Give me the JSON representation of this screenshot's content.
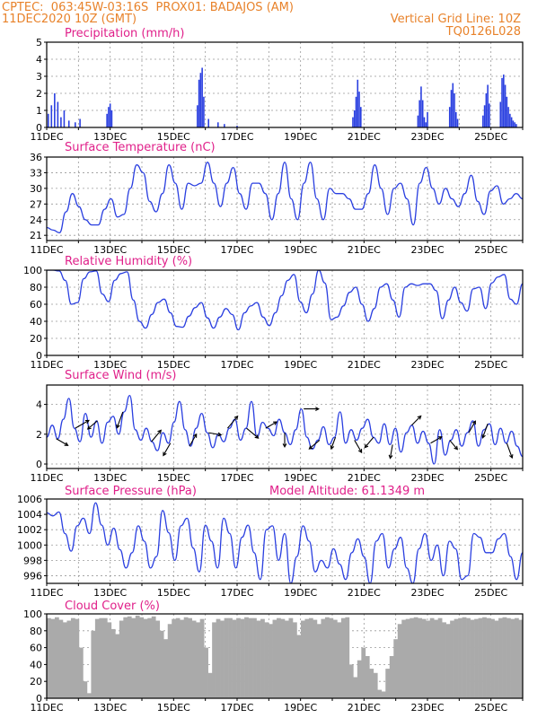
{
  "header": {
    "left_line1": "CPTEC:  063:45W-03:16S  PROX01: BADAJOS (AM)",
    "left_line2": "11DEC2020 10Z (GMT)",
    "right_line1": "Vertical Grid Line: 10Z",
    "right_line2": "TQ0126L028",
    "color": "#e8822a"
  },
  "colors": {
    "title": "#e0208a",
    "series": "#2a3fe0",
    "arrow": "#000000",
    "cloud": "#aaaaaa"
  },
  "chart_data": [
    {
      "id": "precip",
      "type": "bar",
      "title": "Precipitation (mm/h)",
      "xticks": [
        "11DEC",
        "13DEC",
        "15DEC",
        "17DEC",
        "19DEC",
        "21DEC",
        "23DEC",
        "25DEC"
      ],
      "xlim_days": [
        11,
        26
      ],
      "ylim": [
        0,
        5
      ],
      "yticks": [
        0,
        1,
        2,
        3,
        4,
        5
      ],
      "x_day": [
        11.05,
        11.15,
        11.25,
        11.35,
        11.45,
        11.55,
        11.7,
        11.9,
        12.05,
        12.9,
        12.95,
        13.0,
        13.05,
        15.75,
        15.8,
        15.85,
        15.9,
        15.95,
        16.1,
        16.4,
        16.6,
        17.0,
        20.65,
        20.7,
        20.75,
        20.8,
        20.85,
        20.9,
        22.7,
        22.75,
        22.8,
        22.85,
        22.9,
        22.95,
        23.0,
        23.7,
        23.75,
        23.8,
        23.85,
        23.9,
        23.95,
        24.75,
        24.8,
        24.85,
        24.9,
        24.95,
        25.3,
        25.35,
        25.4,
        25.45,
        25.5,
        25.55,
        25.6,
        25.65,
        25.7,
        25.75,
        25.8,
        26.0,
        26.05,
        26.1,
        26.15,
        26.25,
        26.3,
        26.35,
        26.4,
        26.45
      ],
      "values": [
        0.8,
        1.3,
        2.0,
        1.5,
        0.6,
        1.0,
        0.4,
        0.3,
        0.5,
        0.8,
        1.2,
        1.4,
        1.0,
        1.3,
        2.8,
        3.2,
        3.5,
        1.8,
        0.5,
        0.3,
        0.2,
        0.1,
        0.6,
        1.0,
        1.8,
        2.8,
        2.1,
        1.2,
        0.7,
        1.6,
        2.4,
        1.6,
        0.6,
        0.3,
        0.9,
        1.2,
        2.2,
        2.6,
        2.0,
        0.9,
        0.5,
        0.7,
        1.3,
        2.0,
        2.5,
        1.4,
        1.5,
        2.9,
        3.1,
        2.5,
        1.8,
        1.2,
        0.8,
        0.6,
        0.4,
        0.3,
        0.2,
        0.6,
        1.5,
        1.9,
        1.3,
        0.8,
        1.4,
        1.8,
        1.2,
        0.6
      ]
    },
    {
      "id": "temp",
      "type": "line",
      "title": "Surface Temperature (nC)",
      "xticks": [
        "11DEC",
        "13DEC",
        "15DEC",
        "17DEC",
        "19DEC",
        "21DEC",
        "23DEC",
        "25DEC"
      ],
      "xlim_days": [
        11,
        26
      ],
      "ylim": [
        20,
        36
      ],
      "yticks": [
        21,
        24,
        27,
        30,
        33,
        36
      ],
      "series": [
        {
          "values": [
            22.5,
            22.0,
            21.5,
            25.5,
            29.0,
            26.5,
            24.0,
            23.0,
            23.0,
            26.0,
            28.0,
            24.5,
            25.0,
            30.0,
            34.5,
            33.0,
            27.5,
            25.5,
            29.0,
            34.5,
            31.0,
            26.0,
            31.0,
            30.5,
            31.0,
            35.0,
            31.0,
            26.5,
            31.0,
            34.0,
            29.0,
            26.0,
            31.0,
            31.0,
            29.0,
            24.0,
            29.0,
            35.0,
            28.0,
            24.0,
            31.0,
            35.0,
            28.0,
            24.0,
            30.0,
            29.0,
            29.0,
            28.0,
            26.0,
            26.0,
            29.0,
            34.5,
            30.0,
            25.0,
            30.0,
            31.0,
            28.0,
            23.0,
            31.0,
            34.0,
            30.0,
            27.0,
            30.0,
            28.0,
            26.5,
            29.0,
            32.5,
            27.5,
            25.0,
            29.5,
            30.5,
            27.0,
            28.0,
            29.0,
            28.0
          ]
        }
      ]
    },
    {
      "id": "rh",
      "type": "line",
      "title": "Relative Humidity (%)",
      "xticks": [
        "11DEC",
        "13DEC",
        "15DEC",
        "17DEC",
        "19DEC",
        "21DEC",
        "23DEC",
        "25DEC"
      ],
      "xlim_days": [
        11,
        26
      ],
      "ylim": [
        0,
        100
      ],
      "yticks": [
        0,
        20,
        40,
        60,
        80,
        100
      ],
      "series": [
        {
          "values": [
            100,
            100,
            99,
            88,
            60,
            62,
            90,
            98,
            99,
            72,
            63,
            88,
            96,
            98,
            65,
            40,
            32,
            48,
            62,
            66,
            50,
            34,
            33,
            46,
            56,
            62,
            44,
            32,
            45,
            55,
            48,
            30,
            50,
            58,
            62,
            45,
            35,
            50,
            70,
            88,
            95,
            63,
            50,
            72,
            100,
            85,
            42,
            45,
            58,
            74,
            80,
            60,
            40,
            55,
            80,
            84,
            65,
            45,
            80,
            84,
            82,
            84,
            84,
            76,
            43,
            65,
            80,
            62,
            52,
            78,
            80,
            55,
            85,
            92,
            95,
            66,
            60,
            84
          ]
        }
      ]
    },
    {
      "id": "wind",
      "type": "line",
      "title": "Surface Wind (m/s)",
      "xticks": [
        "11DEC",
        "13DEC",
        "15DEC",
        "17DEC",
        "19DEC",
        "21DEC",
        "23DEC",
        "25DEC"
      ],
      "xlim_days": [
        11,
        26
      ],
      "ylim": [
        -0.3,
        5.3
      ],
      "yticks": [
        0,
        2,
        4
      ],
      "series": [
        {
          "values": [
            1.8,
            2.6,
            1.7,
            3.0,
            4.4,
            2.4,
            1.5,
            3.4,
            1.8,
            2.9,
            1.4,
            2.8,
            3.2,
            2.0,
            3.5,
            4.6,
            2.3,
            1.6,
            2.4,
            1.5,
            0.9,
            2.1,
            1.4,
            2.8,
            4.2,
            2.3,
            1.2,
            2.4,
            3.4,
            2.1,
            1.1,
            2.0,
            1.5,
            2.4,
            3.0,
            1.6,
            2.4,
            4.2,
            1.8,
            2.8,
            2.4,
            1.9,
            3.0,
            2.1,
            1.3,
            2.3,
            3.7,
            1.8,
            1.0,
            1.6,
            2.5,
            1.3,
            1.8,
            3.5,
            1.4,
            2.3,
            1.6,
            2.4,
            3.0,
            1.8,
            1.4,
            2.7,
            1.3,
            2.4,
            0.8,
            2.1,
            2.6,
            1.4,
            2.2,
            1.4,
            0.0,
            2.3,
            0.6,
            1.6,
            2.3,
            1.2,
            2.1,
            2.9,
            1.2,
            2.3,
            2.7,
            1.3,
            2.4,
            1.4,
            2.2,
            1.2,
            0.5
          ]
        }
      ],
      "vectors_x_day": [
        11.3,
        11.9,
        12.6,
        13.4,
        14.3,
        14.9,
        15.5,
        16.1,
        16.7,
        17.3,
        17.9,
        18.5,
        19.1,
        19.6,
        20.1,
        20.7,
        21.3,
        21.9,
        22.5,
        23.1,
        23.7,
        24.3,
        24.9,
        25.5
      ],
      "vectors_dir_deg": [
        120,
        60,
        230,
        200,
        40,
        210,
        30,
        100,
        40,
        130,
        60,
        180,
        90,
        230,
        200,
        150,
        220,
        190,
        45,
        60,
        140,
        30,
        200,
        160
      ],
      "vectors_speed": [
        2.0,
        2.6,
        1.8,
        3.0,
        2.4,
        2.2,
        2.1,
        1.8,
        2.6,
        2.5,
        1.8,
        2.2,
        2.4,
        2.0,
        1.7,
        2.2,
        2.0,
        2.1,
        1.9,
        1.8,
        1.6,
        2.0,
        2.4,
        2.6
      ]
    },
    {
      "id": "pres",
      "type": "line",
      "title": "Surface Pressure (hPa)",
      "annotation": "Model Altitude: 61.1349 m",
      "xticks": [
        "11DEC",
        "13DEC",
        "15DEC",
        "17DEC",
        "19DEC",
        "21DEC",
        "23DEC",
        "25DEC"
      ],
      "xlim_days": [
        11,
        26
      ],
      "ylim": [
        995,
        1006
      ],
      "yticks": [
        996,
        998,
        1000,
        1002,
        1004,
        1006
      ],
      "series": [
        {
          "values": [
            1004.2,
            1003.8,
            1004.3,
            1001.5,
            999.2,
            1002.5,
            1003.5,
            1001.5,
            1005.5,
            1002.6,
            1000.0,
            1002.2,
            999.4,
            997.0,
            999.0,
            1002.5,
            1000.5,
            997.0,
            998.5,
            1004.5,
            1001.6,
            998.0,
            1002.5,
            1003.5,
            999.6,
            996.5,
            1002.6,
            1000.5,
            997.0,
            1003.5,
            1001.5,
            997.0,
            1001.0,
            1002.6,
            999.0,
            995.5,
            1002.0,
            1002.5,
            998.0,
            1001.5,
            995.0,
            998.5,
            1002.5,
            1000.5,
            996.5,
            998.0,
            997.0,
            999.5,
            997.5,
            995.5,
            999.0,
            1000.8,
            998.5,
            995.0,
            1000.5,
            1001.5,
            997.0,
            999.5,
            1001.0,
            997.0,
            995.0,
            999.5,
            1001.5,
            998.0,
            1000.0,
            996.0,
            1000.5,
            999.5,
            995.5,
            996.0,
            1001.5,
            1001.0,
            999.0,
            999.0,
            1000.8,
            1001.5,
            998.5,
            995.5,
            999.0
          ]
        }
      ]
    },
    {
      "id": "cloud",
      "type": "area",
      "title": "Cloud Cover (%)",
      "xticks": [
        "11DEC",
        "13DEC",
        "15DEC",
        "17DEC",
        "19DEC",
        "21DEC",
        "23DEC",
        "25DEC"
      ],
      "xlim_days": [
        11,
        26
      ],
      "ylim": [
        0,
        100
      ],
      "yticks": [
        0,
        20,
        40,
        60,
        80,
        100
      ],
      "series": [
        {
          "values": [
            95,
            94,
            96,
            93,
            90,
            92,
            95,
            94,
            60,
            20,
            6,
            80,
            94,
            95,
            95,
            90,
            82,
            76,
            92,
            96,
            97,
            95,
            98,
            96,
            94,
            95,
            97,
            92,
            80,
            70,
            88,
            94,
            95,
            93,
            96,
            95,
            92,
            90,
            94,
            60,
            30,
            90,
            94,
            92,
            95,
            95,
            93,
            95,
            94,
            96,
            95,
            95,
            92,
            94,
            90,
            88,
            93,
            95,
            94,
            92,
            95,
            90,
            75,
            92,
            94,
            95,
            93,
            88,
            94,
            96,
            95,
            93,
            90,
            95,
            96,
            40,
            25,
            45,
            60,
            50,
            35,
            30,
            10,
            8,
            35,
            50,
            70,
            88,
            93,
            94,
            95,
            96,
            95,
            94,
            92,
            95,
            93,
            95,
            90,
            88,
            92,
            94,
            95,
            96,
            95,
            93,
            94,
            95,
            96,
            95,
            94,
            92,
            95,
            96,
            95,
            94,
            95,
            93
          ]
        }
      ]
    }
  ]
}
